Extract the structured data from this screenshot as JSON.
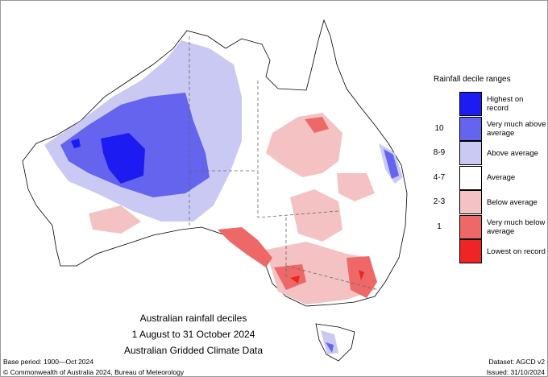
{
  "map": {
    "title_lines": [
      "Australian rainfall deciles",
      "1 August to 31 October 2024",
      "Australian Gridded Climate Data"
    ],
    "legend": {
      "title": "Rainfall decile ranges",
      "items": [
        {
          "label": "Highest on record",
          "color": "#1c1cf2"
        },
        {
          "label": "Very much above average",
          "decile": "10",
          "color": "#6464ee"
        },
        {
          "label": "Above average",
          "decile": "8-9",
          "color": "#c9c9f4"
        },
        {
          "label": "Average",
          "decile": "4-7",
          "color": "#ffffff"
        },
        {
          "label": "Below average",
          "decile": "2-3",
          "color": "#f4c2c2"
        },
        {
          "label": "Very much below average",
          "decile": "1",
          "color": "#ee6868"
        },
        {
          "label": "Lowest on record",
          "color": "#ef2424"
        }
      ]
    },
    "footer": {
      "base_period": "Base period: 1900—Oct 2024",
      "dataset": "Dataset: AGCD v2",
      "copyright": "© Commonwealth of Australia 2024, Bureau of Meteorology",
      "issued": "Issued: 31/10/2024"
    }
  }
}
